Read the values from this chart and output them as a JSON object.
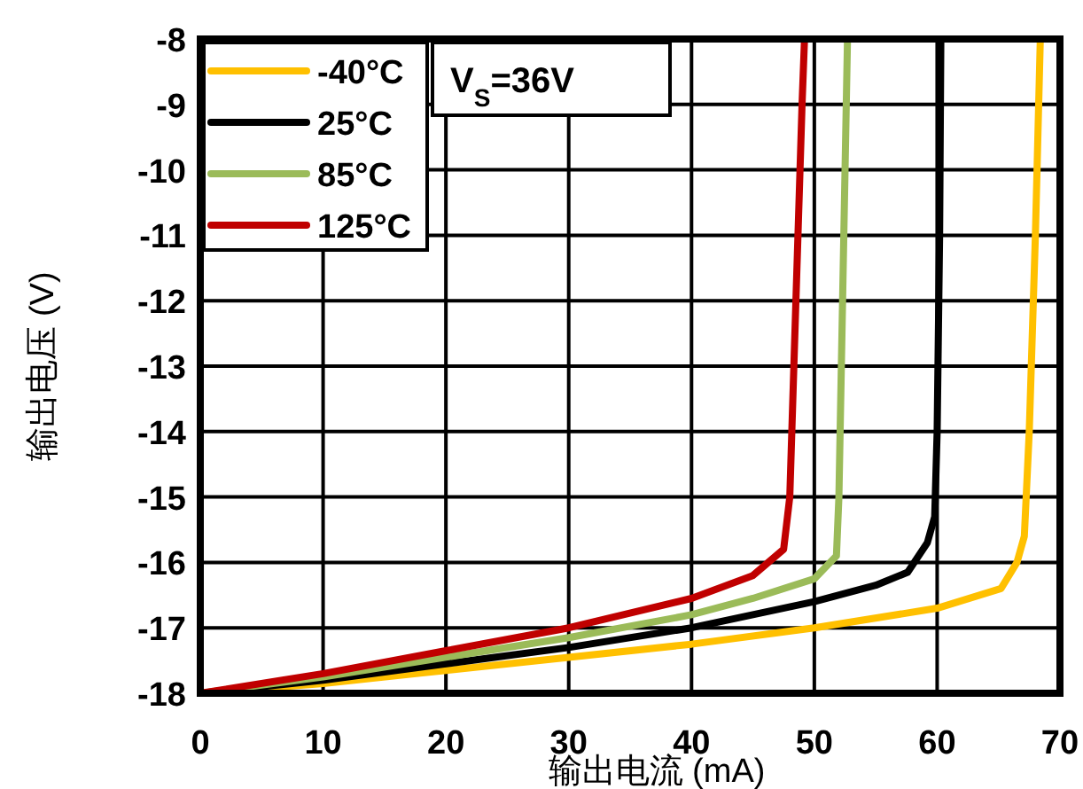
{
  "chart_data": {
    "type": "line",
    "xlabel": "输出电流 (mA)",
    "ylabel": "输出电压 (V)",
    "annotations": [
      "V$_{S}$=36V"
    ],
    "xlim": [
      0,
      70
    ],
    "ylim": [
      -18,
      -8
    ],
    "xticks": [
      0,
      10,
      20,
      30,
      40,
      50,
      60,
      70
    ],
    "yticks": [
      -18,
      -17,
      -16,
      -15,
      -14,
      -13,
      -12,
      -11,
      -10,
      -9,
      -8
    ],
    "grid": true,
    "legend": "top left",
    "marker": "none",
    "line_style": "solid",
    "series": [
      {
        "name": "-40°C",
        "color": "#ffc000",
        "x": [
          0,
          10,
          20,
          30,
          40,
          50,
          60,
          65.2,
          66.5,
          67.1,
          67.5,
          68,
          68.4
        ],
        "values": [
          -18,
          -17.85,
          -17.65,
          -17.45,
          -17.25,
          -17,
          -16.7,
          -16.4,
          -16,
          -15.6,
          -14,
          -11,
          -8
        ]
      },
      {
        "name": "25°C",
        "color": "#000000",
        "x": [
          0,
          10,
          20,
          30,
          40,
          50,
          55,
          57.6,
          59.2,
          59.8,
          60,
          60.2,
          60.3
        ],
        "values": [
          -18,
          -17.8,
          -17.55,
          -17.3,
          -17,
          -16.6,
          -16.35,
          -16.15,
          -15.7,
          -15.3,
          -14,
          -11,
          -8
        ]
      },
      {
        "name": "85°C",
        "color": "#9bbb59",
        "x": [
          0,
          10,
          20,
          30,
          40,
          45,
          50,
          51.8,
          52,
          52.3,
          52.7
        ],
        "values": [
          -18,
          -17.75,
          -17.45,
          -17.15,
          -16.8,
          -16.55,
          -16.25,
          -15.9,
          -15,
          -12,
          -8
        ]
      },
      {
        "name": "125°C",
        "color": "#c00000",
        "x": [
          0,
          10,
          20,
          30,
          40,
          45,
          47.5,
          48,
          48.5,
          49,
          49.2
        ],
        "values": [
          -18,
          -17.7,
          -17.35,
          -17,
          -16.55,
          -16.2,
          -15.8,
          -15,
          -12,
          -9,
          -8
        ]
      }
    ]
  }
}
